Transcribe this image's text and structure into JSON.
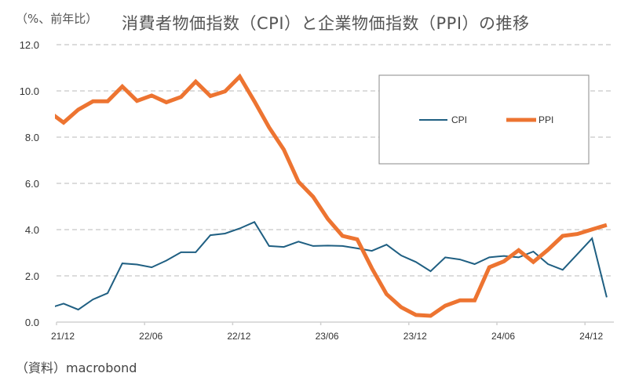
{
  "chart_data": {
    "type": "line",
    "title": "消費者物価指数（CPI）と企業物価指数（PPI）の推移",
    "ylabel": "（%、前年比）",
    "xlabel": "",
    "source": "（資料）macrobond",
    "ylim": [
      0,
      12
    ],
    "yticks": [
      "0.0",
      "2.0",
      "4.0",
      "6.0",
      "8.0",
      "10.0",
      "12.0"
    ],
    "xtick_labels": [
      "21/12",
      "22/06",
      "22/12",
      "23/06",
      "23/12",
      "24/06",
      "24/12"
    ],
    "grid": true,
    "legend_position": "top-right",
    "x": [
      "21/11",
      "21/12",
      "22/01",
      "22/02",
      "22/03",
      "22/04",
      "22/05",
      "22/06",
      "22/07",
      "22/08",
      "22/09",
      "22/10",
      "22/11",
      "22/12",
      "23/01",
      "23/02",
      "23/03",
      "23/04",
      "23/05",
      "23/06",
      "23/07",
      "23/08",
      "23/09",
      "23/10",
      "23/11",
      "23/12",
      "24/01",
      "24/02",
      "24/03",
      "24/04",
      "24/05",
      "24/06",
      "24/07",
      "24/08",
      "24/09",
      "24/10",
      "24/11",
      "24/12",
      "25/01"
    ],
    "series": [
      {
        "name": "CPI",
        "color": "#1f5f82",
        "values": [
          0.6,
          0.8,
          0.54,
          0.98,
          1.25,
          2.54,
          2.49,
          2.37,
          2.66,
          3.02,
          3.02,
          3.76,
          3.83,
          4.05,
          4.33,
          3.29,
          3.25,
          3.48,
          3.29,
          3.31,
          3.29,
          3.19,
          3.08,
          3.35,
          2.88,
          2.6,
          2.2,
          2.8,
          2.71,
          2.51,
          2.8,
          2.86,
          2.8,
          3.05,
          2.51,
          2.26,
          2.94,
          3.62,
          1.07
        ]
      },
      {
        "name": "PPI",
        "color": "#ed7431",
        "values": [
          9.1,
          8.63,
          9.19,
          9.55,
          9.55,
          10.19,
          9.57,
          9.8,
          9.51,
          9.74,
          10.4,
          9.78,
          9.98,
          10.62,
          9.55,
          8.42,
          7.46,
          6.07,
          5.42,
          4.46,
          3.73,
          3.58,
          2.33,
          1.21,
          0.64,
          0.31,
          0.27,
          0.71,
          0.94,
          0.94,
          2.37,
          2.63,
          3.11,
          2.6,
          3.13,
          3.73,
          3.81,
          4.01,
          4.2
        ]
      }
    ]
  }
}
